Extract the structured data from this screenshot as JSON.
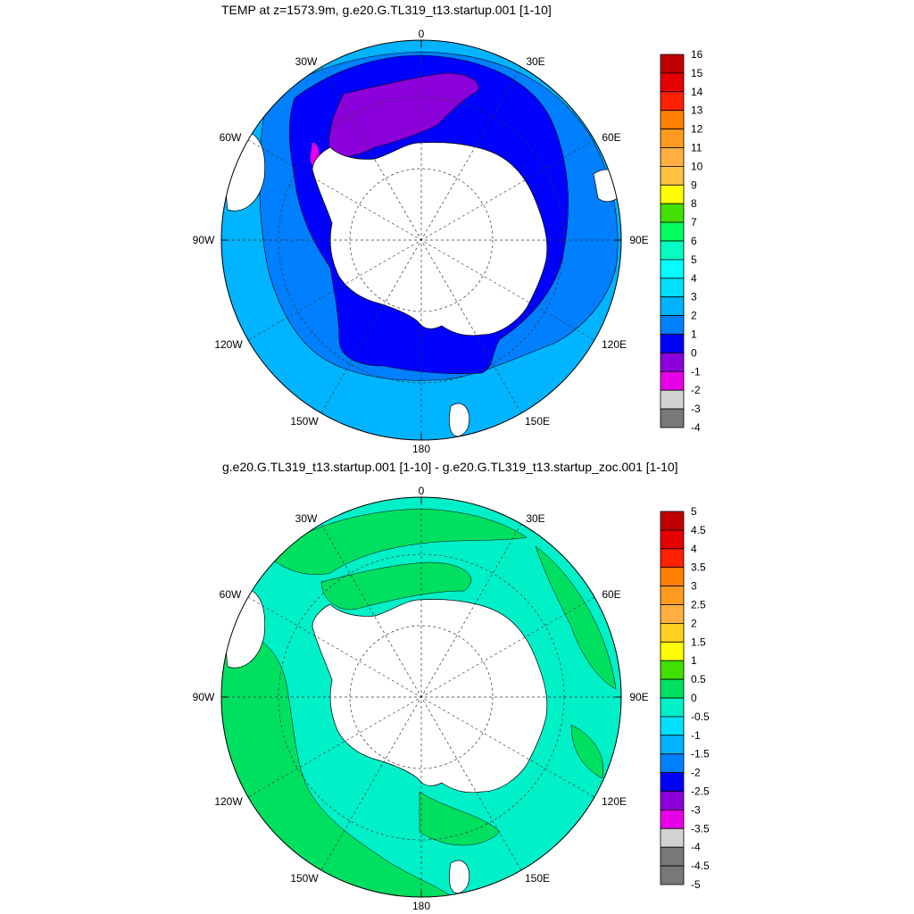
{
  "panels": [
    {
      "title": "TEMP at z=1573.9m, g.e20.G.TL319_t13.startup.001 [1-10]",
      "lon_labels": [
        "0",
        "30E",
        "60E",
        "90E",
        "120E",
        "150E",
        "180",
        "150W",
        "120W",
        "90W",
        "60W",
        "30W"
      ],
      "colorbar": {
        "labels": [
          "16",
          "15",
          "14",
          "13",
          "12",
          "11",
          "10",
          "9",
          "8",
          "7",
          "6",
          "5",
          "4",
          "3",
          "2",
          "1",
          "0",
          "-1",
          "-2",
          "-3",
          "-4"
        ],
        "colors": [
          "#c00000",
          "#e60000",
          "#ff2000",
          "#ff8000",
          "#ff9a20",
          "#ffb040",
          "#ffc040",
          "#ffff00",
          "#40e000",
          "#00ff60",
          "#00ffc0",
          "#00ffff",
          "#00e0ff",
          "#00b4ff",
          "#0080ff",
          "#0000ff",
          "#8c00dc",
          "#e800e8",
          "#d2d2d2",
          "#787878"
        ]
      }
    },
    {
      "title": "g.e20.G.TL319_t13.startup.001 [1-10] - g.e20.G.TL319_t13.startup_zoc.001 [1-10]",
      "lon_labels": [
        "0",
        "30E",
        "60E",
        "90E",
        "120E",
        "150E",
        "180",
        "150W",
        "120W",
        "90W",
        "60W",
        "30W"
      ],
      "colorbar": {
        "labels": [
          "5",
          "4.5",
          "4",
          "3.5",
          "3",
          "2.5",
          "2",
          "1.5",
          "1",
          "0.5",
          "0",
          "-0.5",
          "-1",
          "-1.5",
          "-2",
          "-2.5",
          "-3",
          "-3.5",
          "-4",
          "-4.5",
          "-5"
        ],
        "colors": [
          "#c00000",
          "#e60000",
          "#ff2000",
          "#ff8000",
          "#ff9a20",
          "#ffb040",
          "#ffd020",
          "#ffff00",
          "#40e000",
          "#00e060",
          "#00f0c8",
          "#00e0ff",
          "#00b4ff",
          "#0080ff",
          "#0000ff",
          "#8c00dc",
          "#e800e8",
          "#d2d2d2",
          "#787878",
          "#787878"
        ]
      }
    }
  ]
}
